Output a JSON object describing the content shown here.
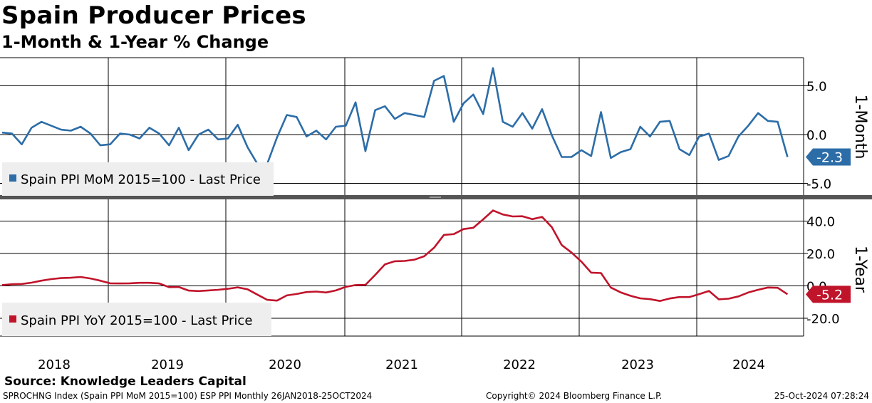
{
  "title": "Spain Producer Prices",
  "subtitle": "1-Month & 1-Year % Change",
  "colors": {
    "mom": "#2c6da8",
    "yoy": "#c0142b",
    "grid": "#000000",
    "legend_bg": "#eeeeee",
    "separator": "#555555"
  },
  "chart_data": [
    {
      "type": "line",
      "panel": "top",
      "axis_title": "1-Month",
      "series_name": "Spain PPI MoM 2015=100 - Last Price",
      "last_value_label": "-2.3",
      "ylim": [
        -6.2,
        7.8
      ],
      "yticks": [
        5.0,
        0.0,
        -5.0
      ],
      "ytick_labels": [
        "5.0",
        "0.0",
        "-5.0"
      ],
      "values": [
        0.2,
        0.1,
        -1.0,
        0.7,
        1.3,
        0.9,
        0.5,
        0.4,
        0.8,
        0.1,
        -1.1,
        -1.0,
        0.1,
        0.0,
        -0.4,
        0.7,
        0.1,
        -1.1,
        0.7,
        -1.6,
        0.0,
        0.5,
        -0.5,
        -0.4,
        1.0,
        -1.3,
        -3.0,
        -3.0,
        -0.3,
        2.0,
        1.8,
        -0.2,
        0.4,
        -0.5,
        0.8,
        0.9,
        3.3,
        -1.7,
        2.5,
        2.9,
        1.6,
        2.2,
        2.0,
        1.8,
        5.5,
        6.0,
        1.3,
        3.2,
        4.1,
        2.1,
        6.8,
        1.3,
        0.8,
        2.2,
        0.6,
        2.6,
        -0.1,
        -2.3,
        -2.3,
        -1.6,
        -2.2,
        2.3,
        -2.4,
        -1.8,
        -1.5,
        0.8,
        -0.2,
        1.3,
        1.4,
        -1.5,
        -2.1,
        -0.2,
        0.1,
        -2.6,
        -2.2,
        -0.2,
        0.9,
        2.2,
        1.4,
        1.3,
        -2.3
      ]
    },
    {
      "type": "line",
      "panel": "bottom",
      "axis_title": "1-Year",
      "series_name": "Spain PPI YoY 2015=100 - Last Price",
      "last_value_label": "-5.2",
      "ylim": [
        -31,
        53
      ],
      "yticks": [
        40.0,
        20.0,
        0.0,
        -20.0
      ],
      "ytick_labels": [
        "40.0",
        "20.0",
        "0.0",
        "-20.0"
      ],
      "values": [
        0.5,
        1.0,
        1.2,
        2.0,
        3.2,
        4.2,
        4.8,
        5.0,
        5.5,
        4.6,
        3.2,
        1.6,
        1.5,
        1.6,
        1.9,
        1.9,
        1.5,
        -0.8,
        -0.7,
        -2.9,
        -3.2,
        -2.8,
        -2.4,
        -1.8,
        -0.9,
        -2.1,
        -5.4,
        -8.6,
        -9.1,
        -5.9,
        -5.0,
        -3.8,
        -3.5,
        -4.1,
        -2.8,
        -0.6,
        0.5,
        0.6,
        6.8,
        13.3,
        15.2,
        15.4,
        16.2,
        18.3,
        23.6,
        31.5,
        32.0,
        35.1,
        35.9,
        41.1,
        46.6,
        44.1,
        42.9,
        43.0,
        41.2,
        42.6,
        36.2,
        25.2,
        20.6,
        15.0,
        8.2,
        7.9,
        -1.0,
        -4.0,
        -6.1,
        -7.7,
        -8.2,
        -9.3,
        -7.8,
        -6.9,
        -6.9,
        -5.1,
        -3.1,
        -8.3,
        -7.9,
        -6.5,
        -4.1,
        -2.4,
        -1.0,
        -1.2,
        -5.2
      ]
    }
  ],
  "x_axis": {
    "year_labels": [
      "2018",
      "2019",
      "2020",
      "2021",
      "2022",
      "2023",
      "2024"
    ]
  },
  "source": "Source: Knowledge Leaders Capital",
  "footer": {
    "left": "SPROCHNG Index (Spain PPI MoM 2015=100) ESP PPI  Monthly 26JAN2018-25OCT2024",
    "center": "Copyright© 2024 Bloomberg Finance L.P.",
    "right": "25-Oct-2024 07:28:24"
  }
}
